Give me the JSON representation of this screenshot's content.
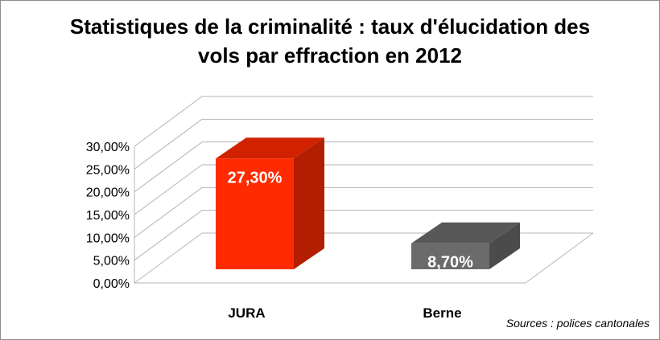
{
  "chart_data": {
    "type": "bar",
    "title_line1": "Statistiques de la criminalité : taux d'élucidation des",
    "title_line2": "vols par effraction en 2012",
    "categories": [
      "JURA",
      "Berne"
    ],
    "values": [
      27.3,
      8.7
    ],
    "value_labels": [
      "27,30%",
      "8,70%"
    ],
    "bar_colors": [
      "#ff2a00",
      "#6b6b6b"
    ],
    "ylim": [
      0,
      30
    ],
    "yticks": [
      0,
      5,
      10,
      15,
      20,
      25,
      30
    ],
    "ytick_labels": [
      "0,00%",
      "5,00%",
      "10,00%",
      "15,00%",
      "20,00%",
      "25,00%",
      "30,00%"
    ],
    "grid": true,
    "legend": "none",
    "style": "3d"
  },
  "source_note": "Sources : polices cantonales"
}
